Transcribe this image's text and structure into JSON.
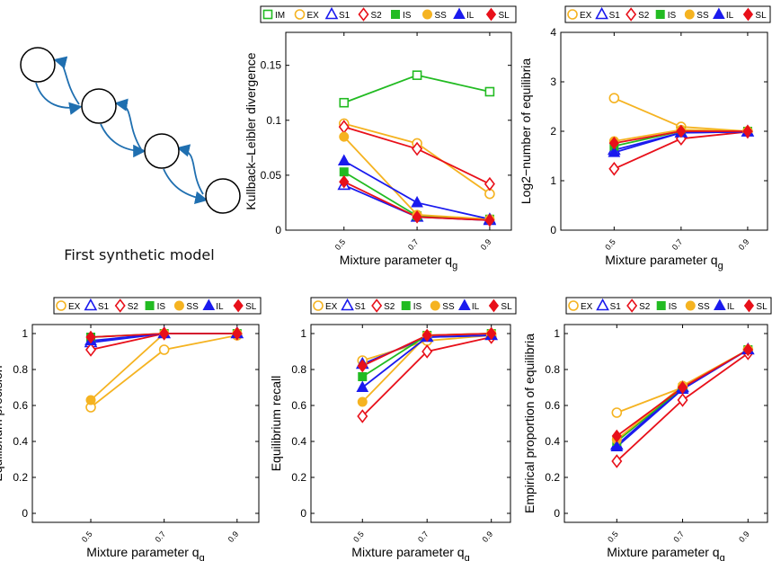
{
  "diagram": {
    "caption": "First synthetic model",
    "node_count": 4,
    "arrow_color": "#1f6fb0"
  },
  "colors": {
    "IM": "#22bb22",
    "EX": "#f5b321",
    "S1": "#1a1aee",
    "S2": "#e8101a",
    "IS": "#22bb22",
    "SS": "#f5b321",
    "IL": "#1a1aee",
    "SL": "#e8101a"
  },
  "chart_data": [
    {
      "type": "line",
      "xlabel": "Mixture parameter q",
      "xlabel_sub": "g",
      "ylabel": "Kullback–Leibler divergence",
      "x": [
        "0.5",
        "0.7",
        "0.9"
      ],
      "ylim": [
        0,
        0.18
      ],
      "yticks": [
        0,
        0.05,
        0.1,
        0.15
      ],
      "ytick_labels": [
        "0",
        "0.05",
        "0.1",
        "0.15"
      ],
      "legend": [
        "IM",
        "EX",
        "S1",
        "S2",
        "IS",
        "SS",
        "IL",
        "SL"
      ],
      "series": [
        {
          "name": "IM",
          "marker": "square-open",
          "values": [
            0.116,
            0.141,
            0.126
          ]
        },
        {
          "name": "EX",
          "marker": "circle-open",
          "values": [
            0.097,
            0.079,
            0.033
          ]
        },
        {
          "name": "S1",
          "marker": "triangle-open",
          "values": [
            0.041,
            0.012,
            0.009
          ]
        },
        {
          "name": "S2",
          "marker": "diamond-open",
          "values": [
            0.094,
            0.074,
            0.042
          ]
        },
        {
          "name": "IS",
          "marker": "square",
          "values": [
            0.053,
            0.013,
            0.01
          ]
        },
        {
          "name": "SS",
          "marker": "circle",
          "values": [
            0.085,
            0.014,
            0.01
          ]
        },
        {
          "name": "IL",
          "marker": "triangle",
          "values": [
            0.063,
            0.025,
            0.01
          ]
        },
        {
          "name": "SL",
          "marker": "diamond",
          "values": [
            0.044,
            0.012,
            0.009
          ]
        }
      ]
    },
    {
      "type": "line",
      "xlabel": "Mixture parameter q",
      "xlabel_sub": "g",
      "ylabel": "Log2−number of equilibria",
      "x": [
        "0.5",
        "0.7",
        "0.9"
      ],
      "ylim": [
        0,
        4
      ],
      "yticks": [
        0,
        1,
        2,
        3,
        4
      ],
      "ytick_labels": [
        "0",
        "1",
        "2",
        "3",
        "4"
      ],
      "legend": [
        "EX",
        "S1",
        "S2",
        "IS",
        "SS",
        "IL",
        "SL"
      ],
      "series": [
        {
          "name": "EX",
          "marker": "circle-open",
          "values": [
            2.67,
            2.09,
            2.0
          ]
        },
        {
          "name": "S1",
          "marker": "triangle-open",
          "values": [
            1.62,
            1.97,
            1.99
          ]
        },
        {
          "name": "S2",
          "marker": "diamond-open",
          "values": [
            1.24,
            1.85,
            1.99
          ]
        },
        {
          "name": "IS",
          "marker": "square",
          "values": [
            1.7,
            2.0,
            2.0
          ]
        },
        {
          "name": "SS",
          "marker": "circle",
          "values": [
            1.8,
            2.03,
            2.0
          ]
        },
        {
          "name": "IL",
          "marker": "triangle",
          "values": [
            1.57,
            1.97,
            1.99
          ]
        },
        {
          "name": "SL",
          "marker": "diamond",
          "values": [
            1.76,
            2.0,
            2.0
          ]
        }
      ]
    },
    {
      "type": "line",
      "xlabel": "Mixture parameter q",
      "xlabel_sub": "g",
      "ylabel": "Equilibrium precision",
      "x": [
        "0.5",
        "0.7",
        "0.9"
      ],
      "ylim": [
        -0.05,
        1.05
      ],
      "yticks": [
        0,
        0.2,
        0.4,
        0.6,
        0.8,
        1
      ],
      "ytick_labels": [
        "0",
        "0.2",
        "0.4",
        "0.6",
        "0.8",
        "1"
      ],
      "legend": [
        "EX",
        "S1",
        "S2",
        "IS",
        "SS",
        "IL",
        "SL"
      ],
      "series": [
        {
          "name": "EX",
          "marker": "circle-open",
          "values": [
            0.59,
            0.91,
            0.99
          ]
        },
        {
          "name": "S1",
          "marker": "triangle-open",
          "values": [
            0.95,
            1.0,
            1.0
          ]
        },
        {
          "name": "S2",
          "marker": "diamond-open",
          "values": [
            0.91,
            1.0,
            1.0
          ]
        },
        {
          "name": "IS",
          "marker": "square",
          "values": [
            0.98,
            1.0,
            1.0
          ]
        },
        {
          "name": "SS",
          "marker": "circle",
          "values": [
            0.63,
            1.0,
            1.0
          ]
        },
        {
          "name": "IL",
          "marker": "triangle",
          "values": [
            0.96,
            1.0,
            1.0
          ]
        },
        {
          "name": "SL",
          "marker": "diamond",
          "values": [
            0.98,
            1.0,
            1.0
          ]
        }
      ]
    },
    {
      "type": "line",
      "xlabel": "Mixture parameter q",
      "xlabel_sub": "g",
      "ylabel": "Equilibrium recall",
      "x": [
        "0.5",
        "0.7",
        "0.9"
      ],
      "ylim": [
        -0.05,
        1.05
      ],
      "yticks": [
        0,
        0.2,
        0.4,
        0.6,
        0.8,
        1
      ],
      "ytick_labels": [
        "0",
        "0.2",
        "0.4",
        "0.6",
        "0.8",
        "1"
      ],
      "legend": [
        "EX",
        "S1",
        "S2",
        "IS",
        "SS",
        "IL",
        "SL"
      ],
      "series": [
        {
          "name": "EX",
          "marker": "circle-open",
          "values": [
            0.85,
            0.96,
            0.99
          ]
        },
        {
          "name": "S1",
          "marker": "triangle-open",
          "values": [
            0.83,
            0.98,
            0.99
          ]
        },
        {
          "name": "S2",
          "marker": "diamond-open",
          "values": [
            0.54,
            0.9,
            0.98
          ]
        },
        {
          "name": "IS",
          "marker": "square",
          "values": [
            0.76,
            0.99,
            1.0
          ]
        },
        {
          "name": "SS",
          "marker": "circle",
          "values": [
            0.62,
            0.99,
            1.0
          ]
        },
        {
          "name": "IL",
          "marker": "triangle",
          "values": [
            0.7,
            0.98,
            0.99
          ]
        },
        {
          "name": "SL",
          "marker": "diamond",
          "values": [
            0.82,
            0.99,
            1.0
          ]
        }
      ]
    },
    {
      "type": "line",
      "xlabel": "Mixture parameter q",
      "xlabel_sub": "g",
      "ylabel": "Empirical proportion of equilibria",
      "x": [
        "0.5",
        "0.7",
        "0.9"
      ],
      "ylim": [
        -0.05,
        1.05
      ],
      "yticks": [
        0,
        0.2,
        0.4,
        0.6,
        0.8,
        1
      ],
      "ytick_labels": [
        "0",
        "0.2",
        "0.4",
        "0.6",
        "0.8",
        "1"
      ],
      "legend": [
        "EX",
        "S1",
        "S2",
        "IS",
        "SS",
        "IL",
        "SL"
      ],
      "series": [
        {
          "name": "EX",
          "marker": "circle-open",
          "values": [
            0.56,
            0.7,
            0.91
          ]
        },
        {
          "name": "S1",
          "marker": "triangle-open",
          "values": [
            0.38,
            0.7,
            0.91
          ]
        },
        {
          "name": "S2",
          "marker": "diamond-open",
          "values": [
            0.29,
            0.63,
            0.89
          ]
        },
        {
          "name": "IS",
          "marker": "square",
          "values": [
            0.4,
            0.7,
            0.91
          ]
        },
        {
          "name": "SS",
          "marker": "circle",
          "values": [
            0.41,
            0.71,
            0.91
          ]
        },
        {
          "name": "IL",
          "marker": "triangle",
          "values": [
            0.37,
            0.69,
            0.91
          ]
        },
        {
          "name": "SL",
          "marker": "diamond",
          "values": [
            0.43,
            0.7,
            0.91
          ]
        }
      ]
    }
  ]
}
